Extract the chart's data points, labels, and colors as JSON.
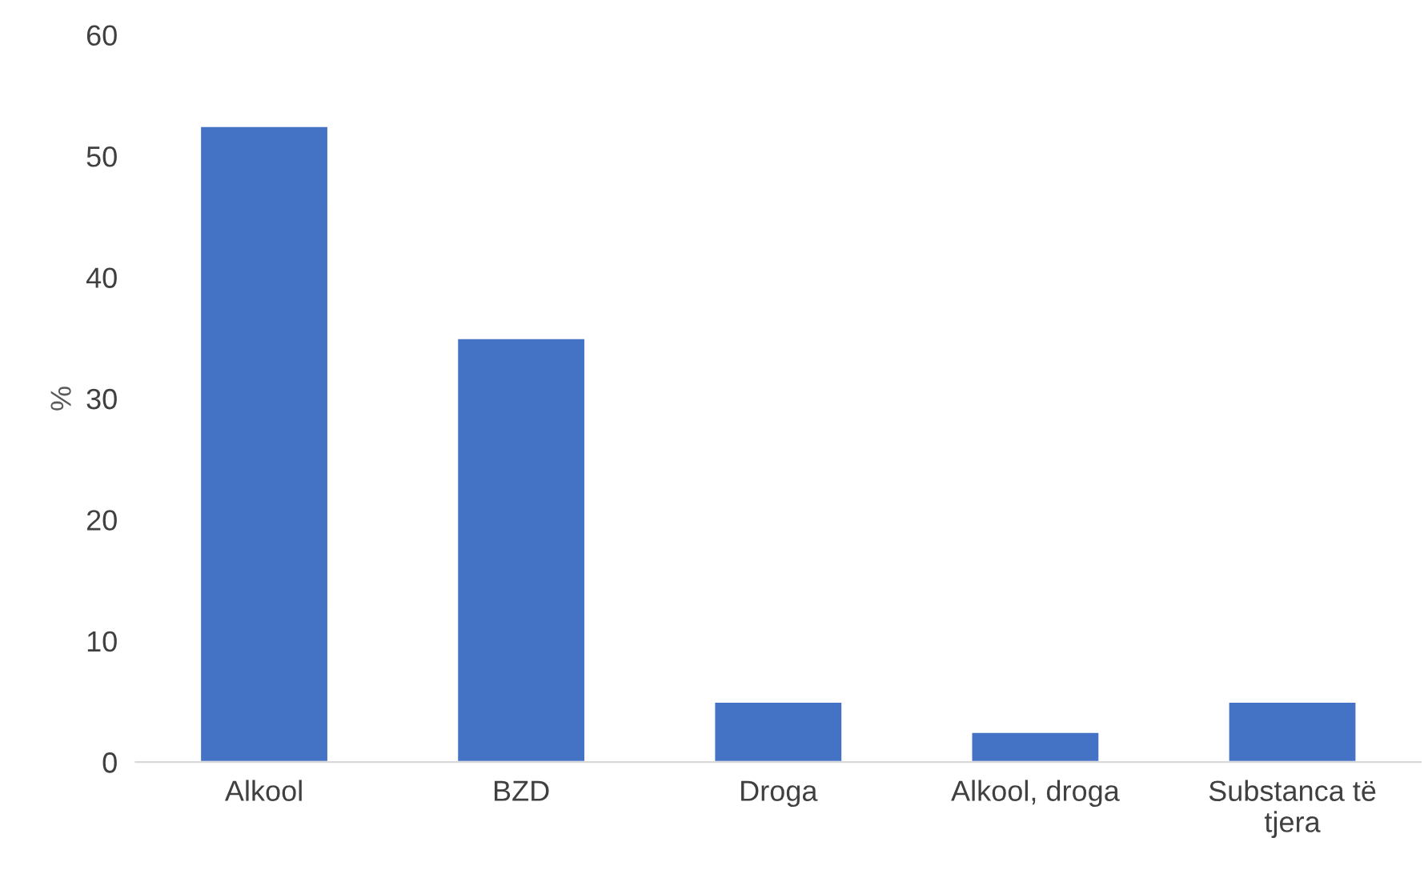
{
  "chart_data": {
    "type": "bar",
    "ylabel": "%",
    "categories": [
      "Alkool",
      "BZD",
      "Droga",
      "Alkool, droga",
      "Substanca të tjera"
    ],
    "values": [
      52.5,
      35,
      5,
      2.5,
      5
    ],
    "color": "#4472c4",
    "ylim": [
      0,
      60
    ],
    "yticks": [
      0,
      10,
      20,
      30,
      40,
      50,
      60
    ],
    "grid": false,
    "legend": false
  }
}
